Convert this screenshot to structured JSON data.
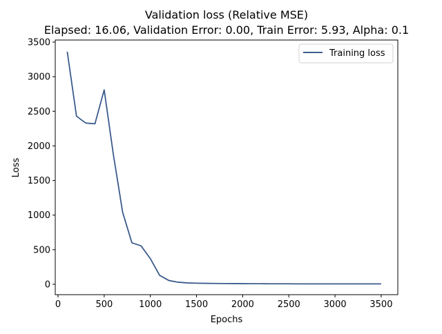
{
  "chart_data": {
    "type": "line",
    "title": "Validation loss (Relative MSE)",
    "subtitle": "Elapsed: 16.06, Validation Error: 0.00, Train Error: 5.93, Alpha: 0.1",
    "xlabel": "Epochs",
    "ylabel": "Loss",
    "xlim": [
      -30,
      3680
    ],
    "ylim": [
      -150,
      3530
    ],
    "xticks": [
      0,
      500,
      1000,
      1500,
      2000,
      2500,
      3000,
      3500
    ],
    "yticks": [
      0,
      500,
      1000,
      1500,
      2000,
      2500,
      3000,
      3500
    ],
    "grid": false,
    "legend_position": "top-right",
    "series": [
      {
        "name": "Training loss",
        "color": "#3b5b8c",
        "x": [
          100,
          200,
          300,
          400,
          500,
          600,
          700,
          800,
          900,
          1000,
          1100,
          1200,
          1300,
          1400,
          1500,
          1600,
          1700,
          1800,
          1900,
          2000,
          2100,
          2200,
          2300,
          2400,
          2500,
          2600,
          2700,
          2800,
          2900,
          3000,
          3100,
          3200,
          3300,
          3400,
          3500
        ],
        "y": [
          3360,
          2430,
          2330,
          2320,
          2810,
          1870,
          1040,
          600,
          555,
          370,
          130,
          55,
          30,
          20,
          16,
          14,
          12,
          11,
          10,
          9,
          8,
          8,
          7,
          7,
          7,
          6,
          6,
          6,
          6,
          6,
          6,
          6,
          6,
          6,
          6
        ]
      }
    ]
  }
}
